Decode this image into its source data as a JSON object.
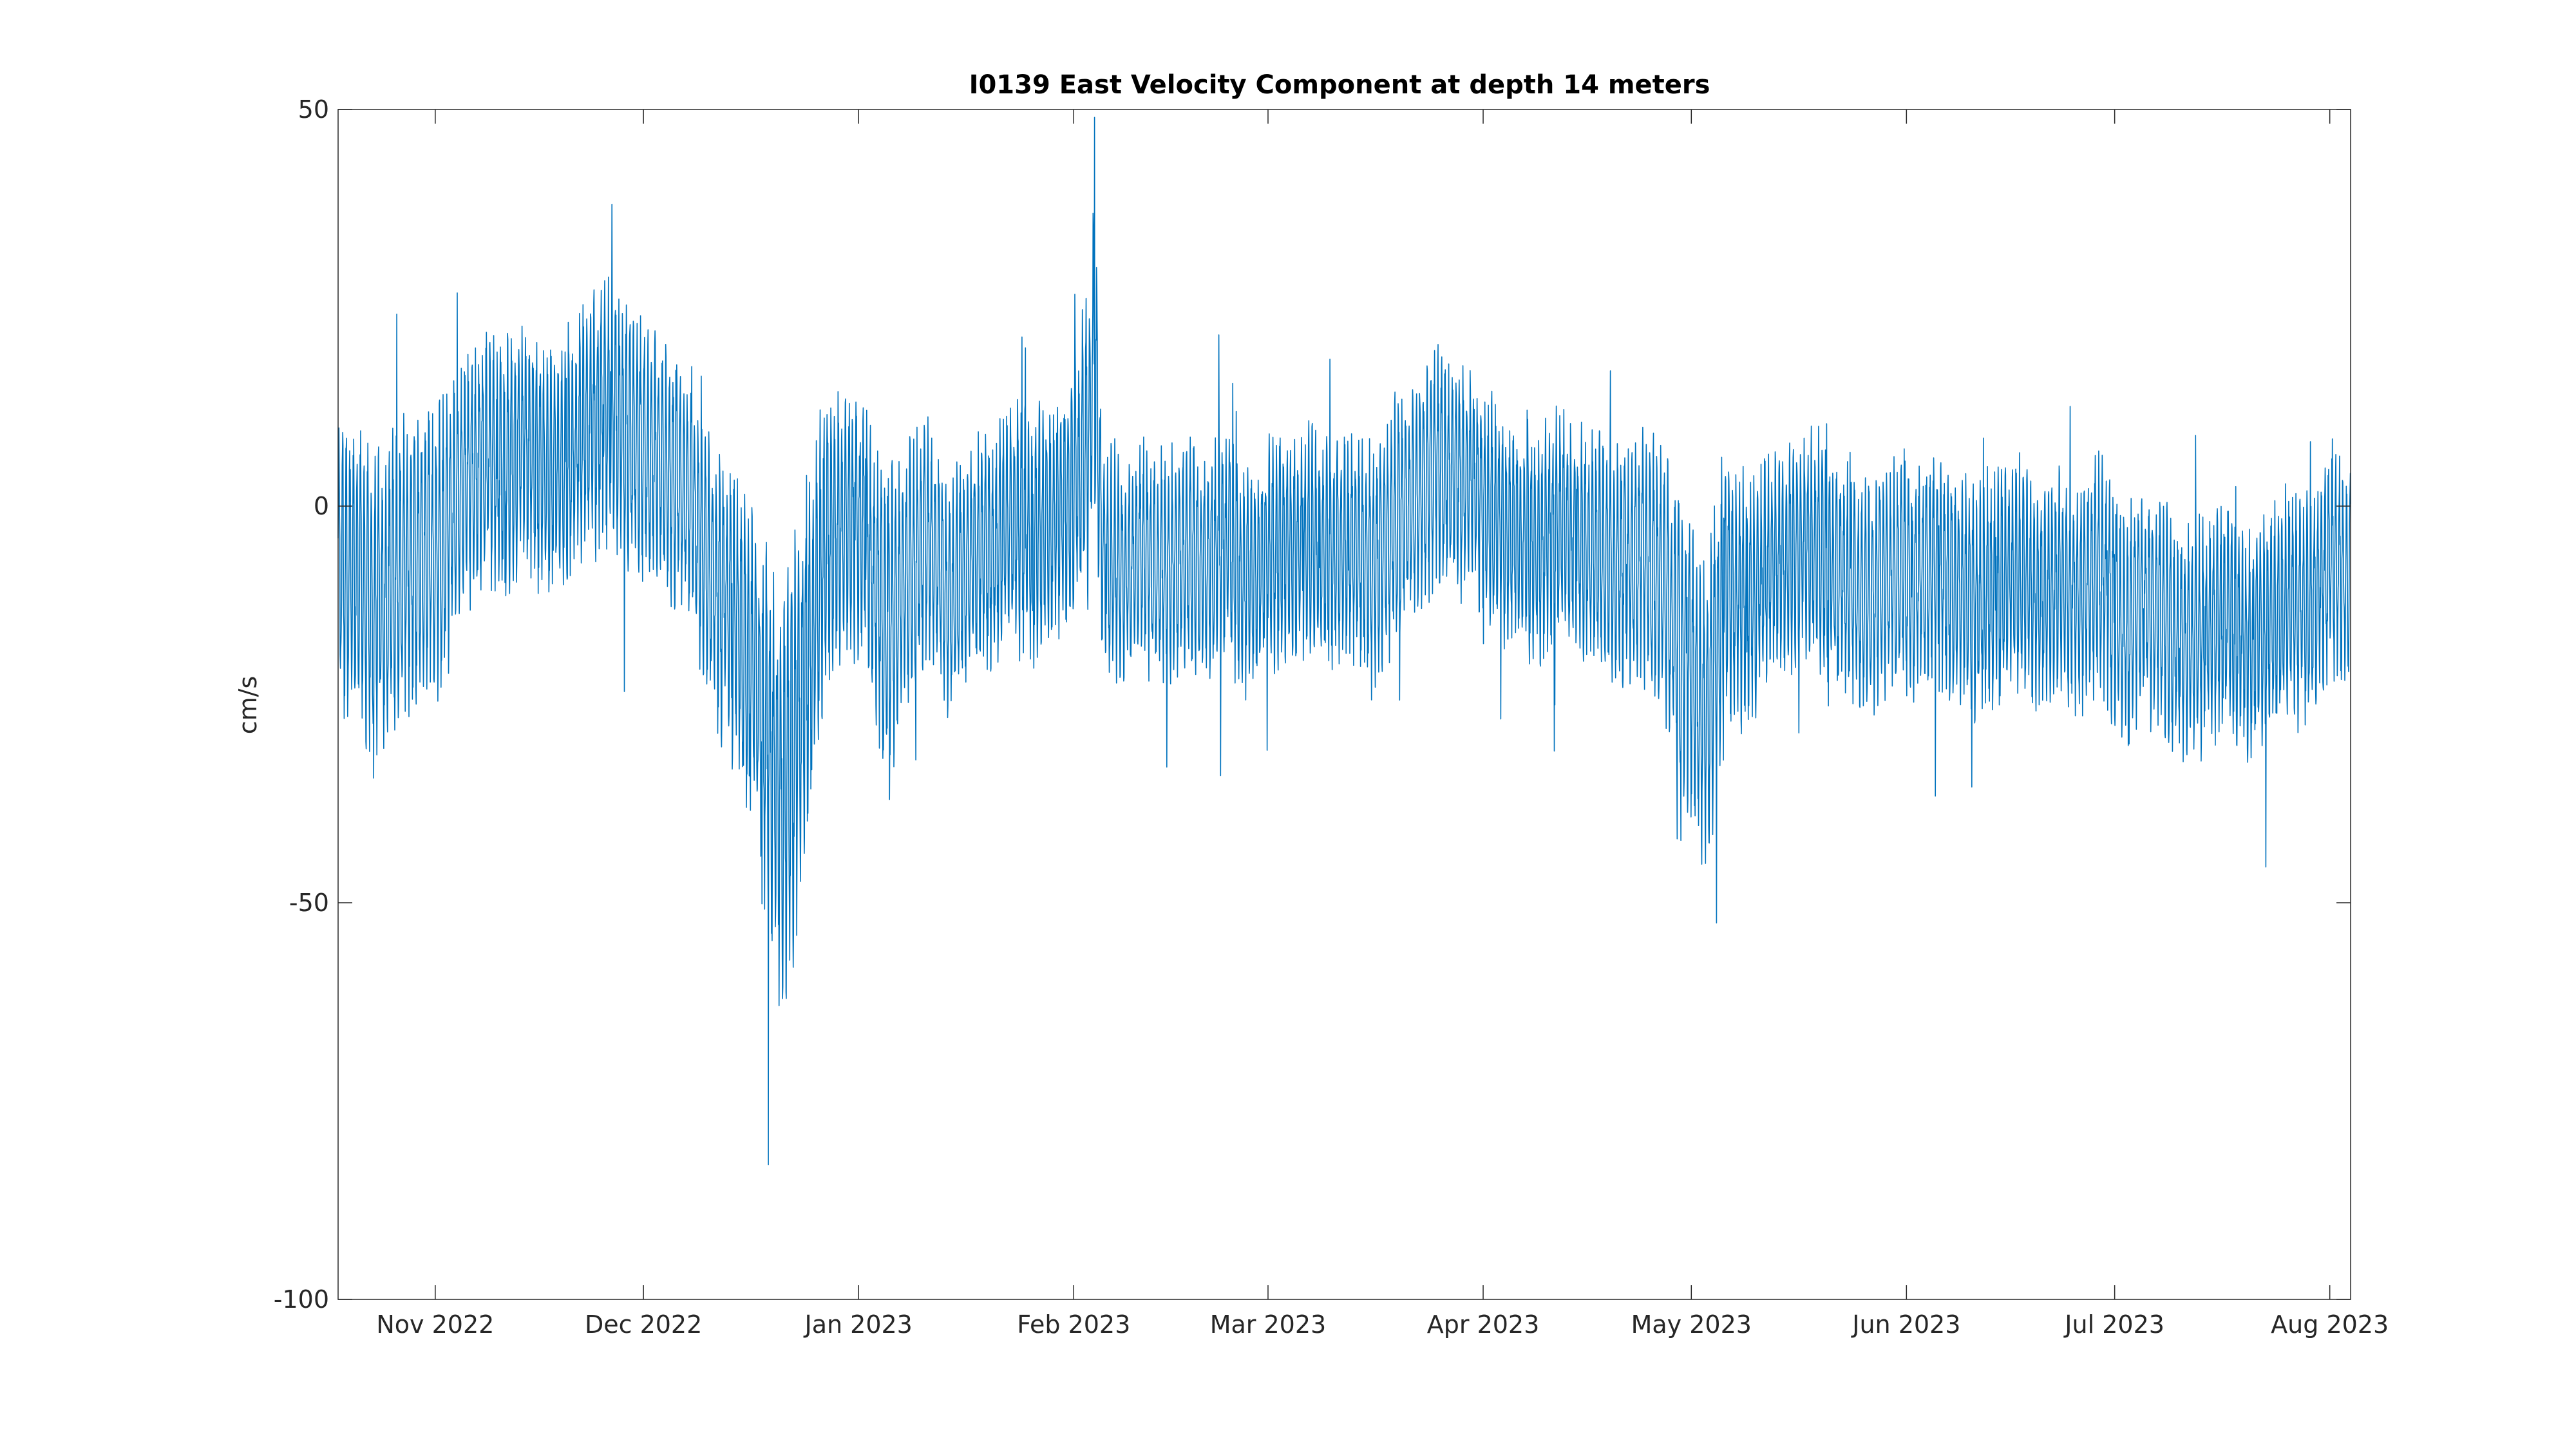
{
  "chart_data": {
    "type": "line",
    "title": "I0139 East Velocity Component at depth 14 meters",
    "xlabel": "",
    "ylabel": "cm/s",
    "xlim": [
      "2022-10-18",
      "2023-08-04"
    ],
    "ylim": [
      -100,
      50
    ],
    "yticks": [
      -100,
      -50,
      0,
      50
    ],
    "xticks": [
      {
        "date": "2022-11-01",
        "label": "Nov 2022"
      },
      {
        "date": "2022-12-01",
        "label": "Dec 2022"
      },
      {
        "date": "2023-01-01",
        "label": "Jan 2023"
      },
      {
        "date": "2023-02-01",
        "label": "Feb 2023"
      },
      {
        "date": "2023-03-01",
        "label": "Mar 2023"
      },
      {
        "date": "2023-04-01",
        "label": "Apr 2023"
      },
      {
        "date": "2023-05-01",
        "label": "May 2023"
      },
      {
        "date": "2023-06-01",
        "label": "Jun 2023"
      },
      {
        "date": "2023-07-01",
        "label": "Jul 2023"
      },
      {
        "date": "2023-08-01",
        "label": "Aug 2023"
      }
    ],
    "grid": false,
    "box": true,
    "line_color": "#0072BD",
    "series": [
      {
        "sampling": "hourly (approx.); curve reconstructed from visual envelope",
        "x": [
          "2022-10-18",
          "2022-10-21",
          "2022-10-24",
          "2022-10-27",
          "2022-10-30",
          "2022-11-02",
          "2022-11-05",
          "2022-11-08",
          "2022-11-11",
          "2022-11-14",
          "2022-11-17",
          "2022-11-20",
          "2022-11-23",
          "2022-11-26",
          "2022-11-29",
          "2022-12-02",
          "2022-12-05",
          "2022-12-08",
          "2022-12-11",
          "2022-12-14",
          "2022-12-17",
          "2022-12-19",
          "2022-12-21",
          "2022-12-24",
          "2022-12-27",
          "2022-12-30",
          "2023-01-02",
          "2023-01-05",
          "2023-01-08",
          "2023-01-11",
          "2023-01-14",
          "2023-01-17",
          "2023-01-20",
          "2023-01-23",
          "2023-01-26",
          "2023-01-29",
          "2023-02-01",
          "2023-02-03",
          "2023-02-04",
          "2023-02-05",
          "2023-02-08",
          "2023-02-11",
          "2023-02-14",
          "2023-02-17",
          "2023-02-20",
          "2023-02-23",
          "2023-02-26",
          "2023-03-01",
          "2023-03-04",
          "2023-03-07",
          "2023-03-10",
          "2023-03-13",
          "2023-03-16",
          "2023-03-19",
          "2023-03-22",
          "2023-03-25",
          "2023-03-28",
          "2023-03-31",
          "2023-04-03",
          "2023-04-06",
          "2023-04-09",
          "2023-04-12",
          "2023-04-15",
          "2023-04-18",
          "2023-04-21",
          "2023-04-24",
          "2023-04-27",
          "2023-04-30",
          "2023-05-03",
          "2023-05-06",
          "2023-05-09",
          "2023-05-12",
          "2023-05-15",
          "2023-05-18",
          "2023-05-21",
          "2023-05-24",
          "2023-05-27",
          "2023-05-30",
          "2023-06-02",
          "2023-06-05",
          "2023-06-08",
          "2023-06-11",
          "2023-06-14",
          "2023-06-17",
          "2023-06-20",
          "2023-06-23",
          "2023-06-26",
          "2023-06-29",
          "2023-07-02",
          "2023-07-05",
          "2023-07-08",
          "2023-07-11",
          "2023-07-14",
          "2023-07-17",
          "2023-07-20",
          "2023-07-23",
          "2023-07-26",
          "2023-07-29",
          "2023-08-01",
          "2023-08-04"
        ],
        "y": [
          -8,
          -10,
          -12,
          -8,
          -6,
          -5,
          3,
          6,
          5,
          8,
          4,
          5,
          10,
          12,
          8,
          6,
          4,
          0,
          -10,
          -14,
          -22,
          -30,
          -38,
          -25,
          -5,
          -2,
          -4,
          -16,
          -8,
          -4,
          -12,
          -6,
          -6,
          -2,
          -4,
          -2,
          2,
          8,
          20,
          -6,
          -8,
          -6,
          -8,
          -6,
          -8,
          -4,
          -10,
          -6,
          -6,
          -4,
          -6,
          -4,
          -8,
          -2,
          0,
          5,
          4,
          2,
          -2,
          -4,
          -6,
          -2,
          -4,
          -6,
          -8,
          -6,
          -10,
          -18,
          -28,
          -10,
          -12,
          -8,
          -6,
          -4,
          -8,
          -10,
          -12,
          -8,
          -10,
          -8,
          -10,
          -12,
          -10,
          -8,
          -12,
          -10,
          -12,
          -8,
          -16,
          -12,
          -14,
          -18,
          -16,
          -14,
          -18,
          -16,
          -12,
          -14,
          -6,
          -10
        ],
        "daily_range": [
          20,
          22,
          20,
          20,
          20,
          20,
          18,
          18,
          18,
          18,
          17,
          17,
          18,
          18,
          18,
          17,
          17,
          17,
          18,
          20,
          22,
          26,
          30,
          28,
          20,
          18,
          18,
          22,
          18,
          16,
          17,
          16,
          16,
          17,
          17,
          17,
          18,
          22,
          20,
          16,
          16,
          16,
          16,
          16,
          16,
          16,
          16,
          16,
          16,
          16,
          16,
          16,
          17,
          17,
          17,
          16,
          16,
          16,
          16,
          16,
          16,
          16,
          16,
          16,
          17,
          17,
          18,
          20,
          22,
          20,
          18,
          16,
          16,
          16,
          16,
          16,
          16,
          16,
          16,
          16,
          16,
          16,
          16,
          16,
          16,
          16,
          16,
          16,
          16,
          16,
          16,
          16,
          16,
          16,
          16,
          16,
          16,
          16,
          16,
          16
        ],
        "extreme_values": {
          "max": 49,
          "max_date": "2023-02-04",
          "min": -83,
          "min_date": "2022-12-19"
        }
      }
    ]
  }
}
